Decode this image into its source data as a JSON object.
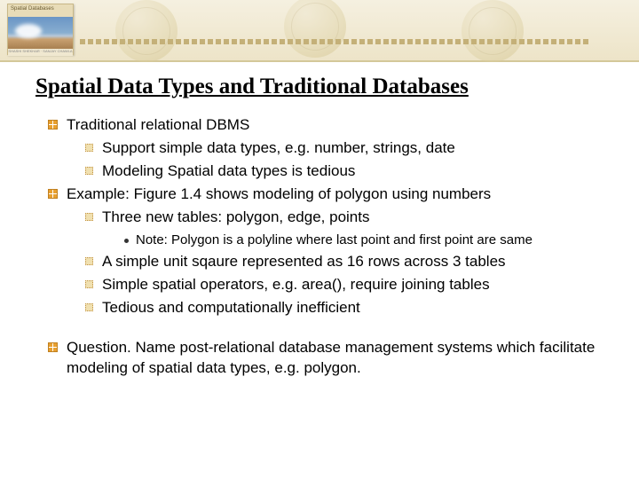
{
  "logo": {
    "top_text": "Spatial Databases",
    "bottom_text": "SHASHI SHEKHAR · SANJAY CHAWLA"
  },
  "title": "Spatial Data Types and Traditional Databases",
  "items": [
    {
      "level": 1,
      "text": "Traditional relational DBMS"
    },
    {
      "level": 2,
      "text": "Support simple data types, e.g. number, strings, date"
    },
    {
      "level": 2,
      "text": "Modeling Spatial data types is tedious"
    },
    {
      "level": 1,
      "text": "Example: Figure 1.4 shows modeling of polygon using numbers"
    },
    {
      "level": 2,
      "text": "Three new tables: polygon, edge, points"
    },
    {
      "level": 3,
      "text": "Note: Polygon is a polyline where last point and first point are same"
    },
    {
      "level": 2,
      "text": "A simple unit sqaure represented as 16 rows across 3 tables"
    },
    {
      "level": 2,
      "text": "Simple spatial operators, e.g. area(), require joining tables"
    },
    {
      "level": 2,
      "text": "Tedious and computationally inefficient"
    },
    {
      "level": 1,
      "text": "Question. Name post-relational database management systems which facilitate modeling of spatial data types, e.g. polygon.",
      "gap": true
    }
  ],
  "colors": {
    "band_bg_top": "#f5f0e0",
    "band_bg_bottom": "#ede4c8",
    "bullet_orange": "#e8a030",
    "title_color": "#000000"
  }
}
